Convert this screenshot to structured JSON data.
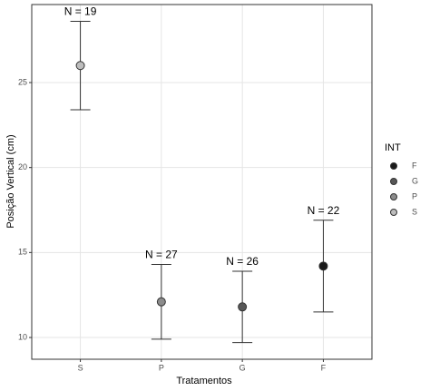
{
  "chart_data": {
    "type": "errorpoint",
    "x_label": "Tratamentos",
    "y_label": "Posição Vertical (cm)",
    "categories": [
      "S",
      "P",
      "G",
      "F"
    ],
    "values": [
      26.0,
      12.1,
      11.8,
      14.2
    ],
    "lower": [
      23.4,
      9.9,
      9.7,
      11.5
    ],
    "upper": [
      28.6,
      14.3,
      13.9,
      16.9
    ],
    "n_labels": [
      "N = 19",
      "N = 27",
      "N = 26",
      "N = 22"
    ],
    "colors": [
      "#bdbdbd",
      "#8c8c8c",
      "#575757",
      "#1a1a1a"
    ],
    "ylim": [
      8.72,
      29.59
    ],
    "yticks": [
      10,
      15,
      20,
      25
    ],
    "grid": true,
    "legend": {
      "title": "INT",
      "position": "right"
    }
  }
}
